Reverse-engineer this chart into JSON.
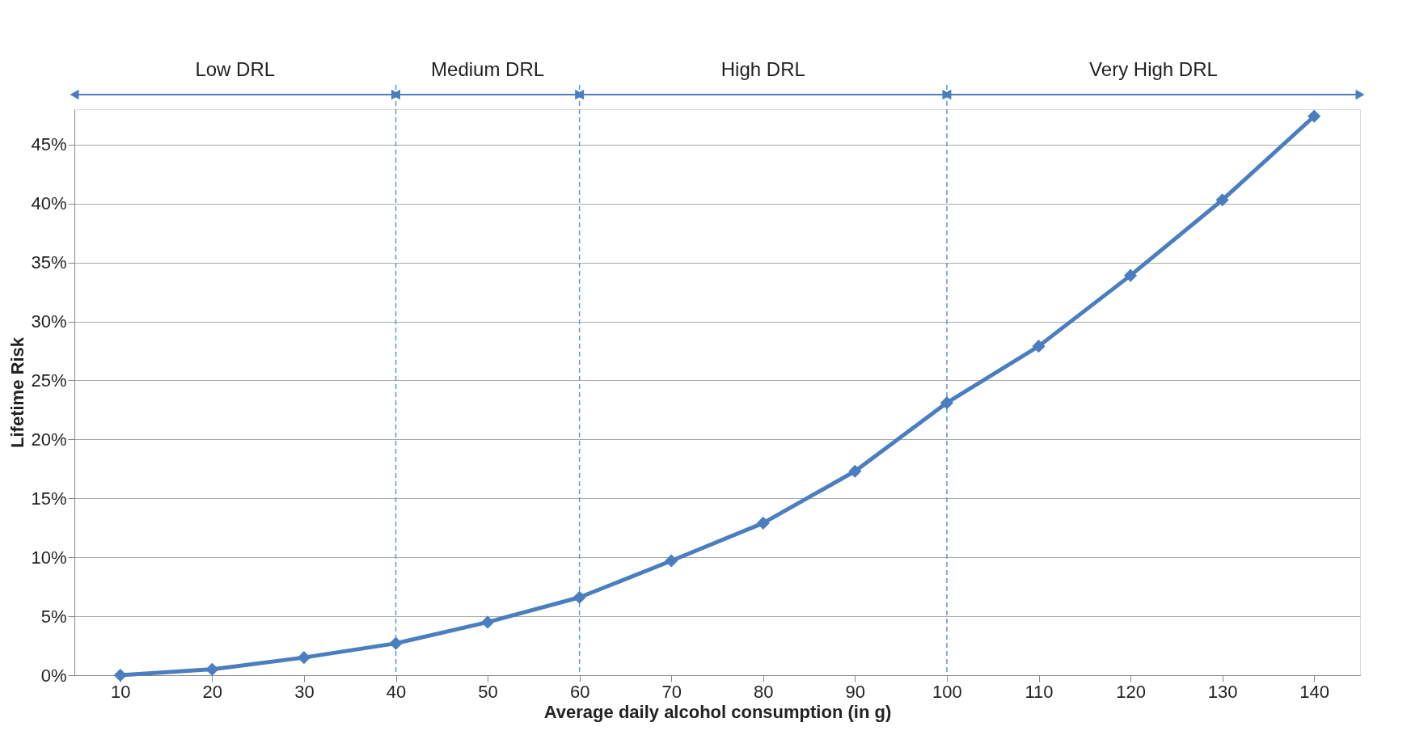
{
  "chart_data": {
    "type": "line",
    "xlabel": "Average daily alcohol consumption (in g)",
    "ylabel": "Lifetime Risk",
    "x": [
      10,
      20,
      30,
      40,
      50,
      60,
      70,
      80,
      90,
      100,
      110,
      120,
      130,
      140
    ],
    "series": [
      {
        "color": "#4a7ebf",
        "values": [
          0,
          0.5,
          1.5,
          2.7,
          4.5,
          6.6,
          9.7,
          12.9,
          17.3,
          23.1,
          27.9,
          33.9,
          40.3,
          47.4
        ]
      }
    ],
    "xlim": [
      5,
      145
    ],
    "xticks": [
      10,
      20,
      30,
      40,
      50,
      60,
      70,
      80,
      90,
      100,
      110,
      120,
      130,
      140
    ],
    "ylim": [
      0,
      48
    ],
    "yticks": [
      {
        "value": 0,
        "label": "0%"
      },
      {
        "value": 5,
        "label": "5%"
      },
      {
        "value": 10,
        "label": "10%"
      },
      {
        "value": 15,
        "label": "15%"
      },
      {
        "value": 20,
        "label": "20%"
      },
      {
        "value": 25,
        "label": "25%"
      },
      {
        "value": 30,
        "label": "30%"
      },
      {
        "value": 35,
        "label": "35%"
      },
      {
        "value": 40,
        "label": "40%"
      },
      {
        "value": 45,
        "label": "45%"
      }
    ],
    "grid": "y",
    "marker": "diamond",
    "line_style": "solid",
    "ref_lines": [
      {
        "axis": "x",
        "value": 40,
        "color": "#5b9bd5",
        "line_style": "dashed"
      },
      {
        "axis": "x",
        "value": 60,
        "color": "#5b9bd5",
        "line_style": "dashed"
      },
      {
        "axis": "x",
        "value": 100,
        "color": "#5b9bd5",
        "line_style": "dashed"
      }
    ],
    "annotations": [
      "Low DRL",
      "Medium DRL",
      "High DRL",
      "Very High DRL"
    ]
  }
}
